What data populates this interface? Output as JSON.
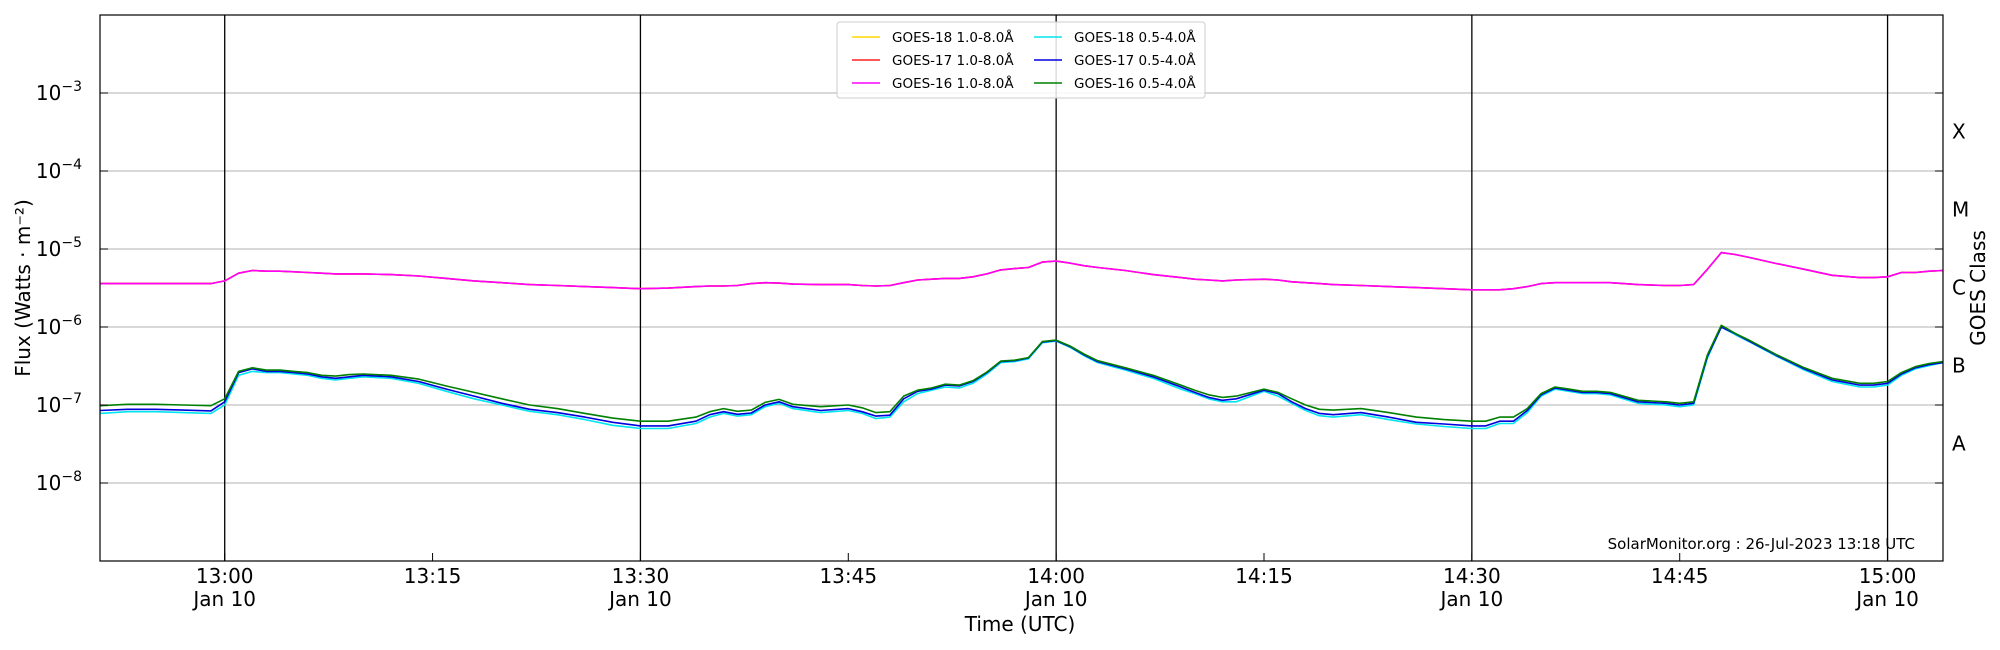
{
  "chart_data": {
    "type": "line",
    "xlabel": "Time (UTC)",
    "ylabel": "Flux (Watts · m⁻²)",
    "y2label": "GOES Class",
    "y_scale": "log",
    "ylim": [
      1e-09,
      0.01
    ],
    "xlim": [
      "12:51",
      "15:04"
    ],
    "grid": "horizontal",
    "credit": "SolarMonitor.org : 26-Jul-2023 13:18 UTC",
    "x_ticks": [
      {
        "time": "13:00",
        "label1": "13:00",
        "label2": "Jan 10"
      },
      {
        "time": "13:15",
        "label1": "13:15",
        "label2": ""
      },
      {
        "time": "13:30",
        "label1": "13:30",
        "label2": "Jan 10"
      },
      {
        "time": "13:45",
        "label1": "13:45",
        "label2": ""
      },
      {
        "time": "14:00",
        "label1": "14:00",
        "label2": "Jan 10"
      },
      {
        "time": "14:15",
        "label1": "14:15",
        "label2": ""
      },
      {
        "time": "14:30",
        "label1": "14:30",
        "label2": "Jan 10"
      },
      {
        "time": "14:45",
        "label1": "14:45",
        "label2": ""
      },
      {
        "time": "15:00",
        "label1": "15:00",
        "label2": "Jan 10"
      }
    ],
    "vertical_lines": [
      "13:00",
      "13:30",
      "14:00",
      "14:30",
      "15:00"
    ],
    "y_ticks": [
      {
        "value": 1e-08,
        "base": "10",
        "exp": "−8"
      },
      {
        "value": 1e-07,
        "base": "10",
        "exp": "−7"
      },
      {
        "value": 1e-06,
        "base": "10",
        "exp": "−6"
      },
      {
        "value": 1e-05,
        "base": "10",
        "exp": "−5"
      },
      {
        "value": 0.0001,
        "base": "10",
        "exp": "−4"
      },
      {
        "value": 0.001,
        "base": "10",
        "exp": "−3"
      }
    ],
    "goes_classes": [
      {
        "label": "A",
        "value": 3.2e-08
      },
      {
        "label": "B",
        "value": 3.2e-07
      },
      {
        "label": "C",
        "value": 3.2e-06
      },
      {
        "label": "M",
        "value": 3.2e-05
      },
      {
        "label": "X",
        "value": 0.00032
      }
    ],
    "x": [
      "12:51",
      "12:53",
      "12:55",
      "12:57",
      "12:59",
      "13:00",
      "13:01",
      "13:02",
      "13:03",
      "13:04",
      "13:05",
      "13:06",
      "13:07",
      "13:08",
      "13:09",
      "13:10",
      "13:12",
      "13:14",
      "13:16",
      "13:18",
      "13:20",
      "13:22",
      "13:24",
      "13:26",
      "13:28",
      "13:30",
      "13:32",
      "13:34",
      "13:35",
      "13:36",
      "13:37",
      "13:38",
      "13:39",
      "13:40",
      "13:41",
      "13:43",
      "13:45",
      "13:46",
      "13:47",
      "13:48",
      "13:49",
      "13:50",
      "13:51",
      "13:52",
      "13:53",
      "13:54",
      "13:55",
      "13:56",
      "13:57",
      "13:58",
      "13:59",
      "14:00",
      "14:01",
      "14:02",
      "14:03",
      "14:05",
      "14:07",
      "14:09",
      "14:10",
      "14:11",
      "14:12",
      "14:13",
      "14:15",
      "14:16",
      "14:17",
      "14:18",
      "14:19",
      "14:20",
      "14:22",
      "14:24",
      "14:26",
      "14:28",
      "14:30",
      "14:31",
      "14:32",
      "14:33",
      "14:34",
      "14:35",
      "14:36",
      "14:37",
      "14:38",
      "14:39",
      "14:40",
      "14:42",
      "14:44",
      "14:45",
      "14:46",
      "14:47",
      "14:48",
      "14:49",
      "14:50",
      "14:52",
      "14:54",
      "14:56",
      "14:58",
      "14:59",
      "15:00",
      "15:01",
      "15:02",
      "15:03",
      "15:04"
    ],
    "series": [
      {
        "name": "GOES-18 1.0-8.0Å",
        "color": "#ffd700",
        "values": [
          3.6e-06,
          3.6e-06,
          3.6e-06,
          3.6e-06,
          3.6e-06,
          3.9e-06,
          4.9e-06,
          5.3e-06,
          5.2e-06,
          5.2e-06,
          5.1e-06,
          5e-06,
          4.9e-06,
          4.8e-06,
          4.8e-06,
          4.8e-06,
          4.7e-06,
          4.5e-06,
          4.2e-06,
          3.9e-06,
          3.7e-06,
          3.5e-06,
          3.4e-06,
          3.3e-06,
          3.2e-06,
          3.1e-06,
          3.15e-06,
          3.3e-06,
          3.35e-06,
          3.35e-06,
          3.4e-06,
          3.6e-06,
          3.7e-06,
          3.65e-06,
          3.55e-06,
          3.5e-06,
          3.5e-06,
          3.4e-06,
          3.35e-06,
          3.4e-06,
          3.7e-06,
          4e-06,
          4.1e-06,
          4.2e-06,
          4.2e-06,
          4.4e-06,
          4.8e-06,
          5.4e-06,
          5.6e-06,
          5.8e-06,
          6.8e-06,
          7e-06,
          6.6e-06,
          6.1e-06,
          5.8e-06,
          5.3e-06,
          4.7e-06,
          4.3e-06,
          4.1e-06,
          4e-06,
          3.9e-06,
          4e-06,
          4.1e-06,
          4e-06,
          3.8e-06,
          3.7e-06,
          3.6e-06,
          3.5e-06,
          3.4e-06,
          3.3e-06,
          3.2e-06,
          3.1e-06,
          3e-06,
          3e-06,
          3e-06,
          3.1e-06,
          3.3e-06,
          3.6e-06,
          3.7e-06,
          3.7e-06,
          3.7e-06,
          3.7e-06,
          3.7e-06,
          3.5e-06,
          3.4e-06,
          3.4e-06,
          3.5e-06,
          5.5e-06,
          9e-06,
          8.5e-06,
          7.8e-06,
          6.5e-06,
          5.5e-06,
          4.6e-06,
          4.3e-06,
          4.3e-06,
          4.4e-06,
          5e-06,
          5e-06,
          5.2e-06,
          5.3e-06
        ]
      },
      {
        "name": "GOES-17 1.0-8.0Å",
        "color": "#ff2020",
        "values": [
          3.6e-06,
          3.6e-06,
          3.6e-06,
          3.6e-06,
          3.6e-06,
          3.9e-06,
          4.9e-06,
          5.3e-06,
          5.2e-06,
          5.2e-06,
          5.1e-06,
          5e-06,
          4.9e-06,
          4.8e-06,
          4.8e-06,
          4.8e-06,
          4.7e-06,
          4.5e-06,
          4.2e-06,
          3.9e-06,
          3.7e-06,
          3.5e-06,
          3.4e-06,
          3.3e-06,
          3.2e-06,
          3.1e-06,
          3.15e-06,
          3.3e-06,
          3.35e-06,
          3.35e-06,
          3.4e-06,
          3.6e-06,
          3.7e-06,
          3.65e-06,
          3.55e-06,
          3.5e-06,
          3.5e-06,
          3.4e-06,
          3.35e-06,
          3.4e-06,
          3.7e-06,
          4e-06,
          4.1e-06,
          4.2e-06,
          4.2e-06,
          4.4e-06,
          4.8e-06,
          5.4e-06,
          5.6e-06,
          5.8e-06,
          6.8e-06,
          7e-06,
          6.6e-06,
          6.1e-06,
          5.8e-06,
          5.3e-06,
          4.7e-06,
          4.3e-06,
          4.1e-06,
          4e-06,
          3.9e-06,
          4e-06,
          4.1e-06,
          4e-06,
          3.8e-06,
          3.7e-06,
          3.6e-06,
          3.5e-06,
          3.4e-06,
          3.3e-06,
          3.2e-06,
          3.1e-06,
          3e-06,
          3e-06,
          3e-06,
          3.1e-06,
          3.3e-06,
          3.6e-06,
          3.7e-06,
          3.7e-06,
          3.7e-06,
          3.7e-06,
          3.7e-06,
          3.5e-06,
          3.4e-06,
          3.4e-06,
          3.5e-06,
          5.5e-06,
          9e-06,
          8.5e-06,
          7.8e-06,
          6.5e-06,
          5.5e-06,
          4.6e-06,
          4.3e-06,
          4.3e-06,
          4.4e-06,
          5e-06,
          5e-06,
          5.2e-06,
          5.3e-06
        ]
      },
      {
        "name": "GOES-16 1.0-8.0Å",
        "color": "#ff00ff",
        "values": [
          3.6e-06,
          3.6e-06,
          3.6e-06,
          3.6e-06,
          3.6e-06,
          3.9e-06,
          4.9e-06,
          5.3e-06,
          5.2e-06,
          5.2e-06,
          5.1e-06,
          5e-06,
          4.9e-06,
          4.8e-06,
          4.8e-06,
          4.8e-06,
          4.7e-06,
          4.5e-06,
          4.2e-06,
          3.9e-06,
          3.7e-06,
          3.5e-06,
          3.4e-06,
          3.3e-06,
          3.2e-06,
          3.1e-06,
          3.15e-06,
          3.3e-06,
          3.35e-06,
          3.35e-06,
          3.4e-06,
          3.6e-06,
          3.7e-06,
          3.65e-06,
          3.55e-06,
          3.5e-06,
          3.5e-06,
          3.4e-06,
          3.35e-06,
          3.4e-06,
          3.7e-06,
          4e-06,
          4.1e-06,
          4.2e-06,
          4.2e-06,
          4.4e-06,
          4.8e-06,
          5.4e-06,
          5.6e-06,
          5.8e-06,
          6.8e-06,
          7e-06,
          6.6e-06,
          6.1e-06,
          5.8e-06,
          5.3e-06,
          4.7e-06,
          4.3e-06,
          4.1e-06,
          4e-06,
          3.9e-06,
          4e-06,
          4.1e-06,
          4e-06,
          3.8e-06,
          3.7e-06,
          3.6e-06,
          3.5e-06,
          3.4e-06,
          3.3e-06,
          3.2e-06,
          3.1e-06,
          3e-06,
          3e-06,
          3e-06,
          3.1e-06,
          3.3e-06,
          3.6e-06,
          3.7e-06,
          3.7e-06,
          3.7e-06,
          3.7e-06,
          3.7e-06,
          3.5e-06,
          3.4e-06,
          3.4e-06,
          3.5e-06,
          5.5e-06,
          9e-06,
          8.5e-06,
          7.8e-06,
          6.5e-06,
          5.5e-06,
          4.6e-06,
          4.3e-06,
          4.3e-06,
          4.4e-06,
          5e-06,
          5e-06,
          5.2e-06,
          5.3e-06
        ]
      },
      {
        "name": "GOES-18 0.5-4.0Å",
        "color": "#00e5ee",
        "values": [
          7.8e-08,
          8.2e-08,
          8.2e-08,
          8e-08,
          7.8e-08,
          1e-07,
          2.4e-07,
          2.7e-07,
          2.6e-07,
          2.6e-07,
          2.5e-07,
          2.4e-07,
          2.2e-07,
          2.1e-07,
          2.2e-07,
          2.3e-07,
          2.2e-07,
          1.9e-07,
          1.5e-07,
          1.2e-07,
          1e-07,
          8.3e-08,
          7.5e-08,
          6.5e-08,
          5.5e-08,
          5e-08,
          5e-08,
          5.8e-08,
          7e-08,
          7.8e-08,
          7.2e-08,
          7.5e-08,
          9.5e-08,
          1.05e-07,
          9e-08,
          8e-08,
          8.5e-08,
          7.8e-08,
          6.7e-08,
          7e-08,
          1.1e-07,
          1.4e-07,
          1.55e-07,
          1.7e-07,
          1.65e-07,
          1.9e-07,
          2.5e-07,
          3.5e-07,
          3.6e-07,
          3.9e-07,
          6.3e-07,
          6.6e-07,
          5.5e-07,
          4.3e-07,
          3.5e-07,
          2.8e-07,
          2.2e-07,
          1.6e-07,
          1.4e-07,
          1.2e-07,
          1.1e-07,
          1.1e-07,
          1.5e-07,
          1.3e-07,
          1.05e-07,
          8.5e-08,
          7.3e-08,
          7e-08,
          7.5e-08,
          6.5e-08,
          5.7e-08,
          5.3e-08,
          5e-08,
          5e-08,
          5.8e-08,
          5.8e-08,
          8e-08,
          1.3e-07,
          1.6e-07,
          1.5e-07,
          1.4e-07,
          1.4e-07,
          1.35e-07,
          1.05e-07,
          1e-07,
          9.5e-08,
          1e-07,
          4e-07,
          1e-06,
          8e-07,
          6.5e-07,
          4.2e-07,
          2.8e-07,
          2e-07,
          1.7e-07,
          1.7e-07,
          1.8e-07,
          2.4e-07,
          2.9e-07,
          3.2e-07,
          3.5e-07
        ]
      },
      {
        "name": "GOES-17 0.5-4.0Å",
        "color": "#0000dd",
        "values": [
          8.5e-08,
          8.8e-08,
          8.8e-08,
          8.6e-08,
          8.4e-08,
          1.1e-07,
          2.6e-07,
          2.9e-07,
          2.7e-07,
          2.7e-07,
          2.6e-07,
          2.5e-07,
          2.3e-07,
          2.2e-07,
          2.3e-07,
          2.4e-07,
          2.3e-07,
          2e-07,
          1.6e-07,
          1.3e-07,
          1.05e-07,
          8.8e-08,
          8e-08,
          7e-08,
          6e-08,
          5.4e-08,
          5.4e-08,
          6.2e-08,
          7.5e-08,
          8.2e-08,
          7.6e-08,
          7.9e-08,
          1e-07,
          1.1e-07,
          9.5e-08,
          8.5e-08,
          9e-08,
          8.2e-08,
          7.2e-08,
          7.4e-08,
          1.2e-07,
          1.5e-07,
          1.6e-07,
          1.8e-07,
          1.75e-07,
          2e-07,
          2.6e-07,
          3.6e-07,
          3.7e-07,
          4e-07,
          6.4e-07,
          6.7e-07,
          5.6e-07,
          4.4e-07,
          3.6e-07,
          2.9e-07,
          2.3e-07,
          1.7e-07,
          1.45e-07,
          1.25e-07,
          1.15e-07,
          1.2e-07,
          1.55e-07,
          1.4e-07,
          1.1e-07,
          9e-08,
          7.8e-08,
          7.5e-08,
          8e-08,
          7e-08,
          6e-08,
          5.7e-08,
          5.4e-08,
          5.4e-08,
          6.2e-08,
          6.2e-08,
          8.5e-08,
          1.35e-07,
          1.65e-07,
          1.55e-07,
          1.45e-07,
          1.45e-07,
          1.4e-07,
          1.1e-07,
          1.05e-07,
          1e-07,
          1.05e-07,
          4.2e-07,
          1e-06,
          8.2e-07,
          6.6e-07,
          4.3e-07,
          2.9e-07,
          2.1e-07,
          1.8e-07,
          1.8e-07,
          1.9e-07,
          2.5e-07,
          3e-07,
          3.3e-07,
          3.5e-07
        ]
      },
      {
        "name": "GOES-16 0.5-4.0Å",
        "color": "#008000",
        "values": [
          9.8e-08,
          1.02e-07,
          1.02e-07,
          1e-07,
          9.8e-08,
          1.2e-07,
          2.7e-07,
          3e-07,
          2.8e-07,
          2.8e-07,
          2.7e-07,
          2.6e-07,
          2.4e-07,
          2.35e-07,
          2.45e-07,
          2.5e-07,
          2.4e-07,
          2.15e-07,
          1.75e-07,
          1.45e-07,
          1.2e-07,
          1e-07,
          9e-08,
          7.8e-08,
          6.8e-08,
          6.2e-08,
          6.2e-08,
          7e-08,
          8.2e-08,
          9e-08,
          8.3e-08,
          8.6e-08,
          1.08e-07,
          1.18e-07,
          1.02e-07,
          9.5e-08,
          1e-07,
          9.2e-08,
          8e-08,
          8.2e-08,
          1.3e-07,
          1.55e-07,
          1.65e-07,
          1.85e-07,
          1.8e-07,
          2.05e-07,
          2.65e-07,
          3.65e-07,
          3.75e-07,
          4.05e-07,
          6.5e-07,
          6.8e-07,
          5.7e-07,
          4.5e-07,
          3.7e-07,
          3e-07,
          2.4e-07,
          1.8e-07,
          1.55e-07,
          1.35e-07,
          1.25e-07,
          1.3e-07,
          1.6e-07,
          1.45e-07,
          1.2e-07,
          1e-07,
          8.8e-08,
          8.6e-08,
          9e-08,
          8e-08,
          7e-08,
          6.5e-08,
          6.2e-08,
          6.2e-08,
          7e-08,
          7e-08,
          9e-08,
          1.4e-07,
          1.7e-07,
          1.6e-07,
          1.5e-07,
          1.5e-07,
          1.45e-07,
          1.15e-07,
          1.1e-07,
          1.05e-07,
          1.1e-07,
          4.4e-07,
          1.05e-06,
          8.3e-07,
          6.8e-07,
          4.4e-07,
          3e-07,
          2.2e-07,
          1.9e-07,
          1.9e-07,
          2e-07,
          2.6e-07,
          3.1e-07,
          3.4e-07,
          3.6e-07
        ]
      }
    ],
    "legend": {
      "placement": "top-center",
      "columns": [
        [
          "GOES-18 1.0-8.0Å",
          "GOES-17 1.0-8.0Å",
          "GOES-16 1.0-8.0Å"
        ],
        [
          "GOES-18 0.5-4.0Å",
          "GOES-17 0.5-4.0Å",
          "GOES-16 0.5-4.0Å"
        ]
      ]
    }
  }
}
